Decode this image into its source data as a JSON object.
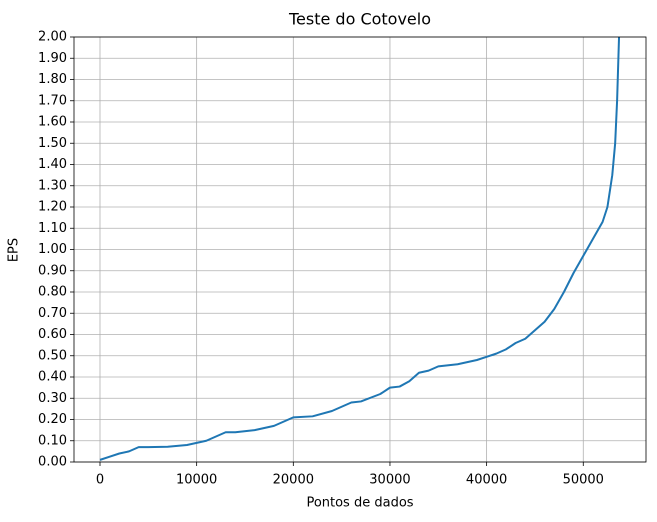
{
  "chart_data": {
    "type": "line",
    "title": "Teste do Cotovelo",
    "x_label": "Pontos de dados",
    "y_label": "EPS",
    "x": [
      0,
      1000,
      2000,
      3000,
      4000,
      5000,
      7000,
      9000,
      11000,
      12000,
      13000,
      14000,
      16000,
      18000,
      20000,
      22000,
      24000,
      26000,
      27000,
      29000,
      30000,
      31000,
      32000,
      33000,
      34000,
      35000,
      37000,
      39000,
      40000,
      41000,
      42000,
      43000,
      44000,
      45000,
      46000,
      47000,
      48000,
      49000,
      50000,
      51000,
      52000,
      52500,
      53000,
      53300,
      53500,
      53700
    ],
    "series": [
      {
        "name": "EPS",
        "color": "#1f77b4",
        "values": [
          0.01,
          0.025,
          0.04,
          0.05,
          0.07,
          0.07,
          0.072,
          0.08,
          0.1,
          0.12,
          0.14,
          0.14,
          0.15,
          0.17,
          0.21,
          0.215,
          0.24,
          0.28,
          0.285,
          0.32,
          0.35,
          0.355,
          0.38,
          0.42,
          0.43,
          0.45,
          0.46,
          0.48,
          0.495,
          0.51,
          0.53,
          0.56,
          0.58,
          0.62,
          0.66,
          0.72,
          0.8,
          0.89,
          0.97,
          1.05,
          1.13,
          1.2,
          1.35,
          1.5,
          1.7,
          2.0
        ]
      }
    ],
    "xlim": [
      -2690,
      56490
    ],
    "xticks": [
      0,
      10000,
      20000,
      30000,
      40000,
      50000
    ],
    "ylim": [
      0,
      2
    ],
    "yticks": [
      {
        "value": 0,
        "label": "0.00"
      },
      {
        "value": 0.1,
        "label": "0.10"
      },
      {
        "value": 0.2,
        "label": "0.20"
      },
      {
        "value": 0.3,
        "label": "0.30"
      },
      {
        "value": 0.4,
        "label": "0.40"
      },
      {
        "value": 0.5,
        "label": "0.50"
      },
      {
        "value": 0.6,
        "label": "0.60"
      },
      {
        "value": 0.7,
        "label": "0.70"
      },
      {
        "value": 0.8,
        "label": "0.80"
      },
      {
        "value": 0.9,
        "label": "0.90"
      },
      {
        "value": 1,
        "label": "1.00"
      },
      {
        "value": 1.1,
        "label": "1.10"
      },
      {
        "value": 1.2,
        "label": "1.20"
      },
      {
        "value": 1.3,
        "label": "1.30"
      },
      {
        "value": 1.4,
        "label": "1.40"
      },
      {
        "value": 1.5,
        "label": "1.50"
      },
      {
        "value": 1.6,
        "label": "1.60"
      },
      {
        "value": 1.7,
        "label": "1.70"
      },
      {
        "value": 1.8,
        "label": "1.80"
      },
      {
        "value": 1.9,
        "label": "1.90"
      },
      {
        "value": 2,
        "label": "2.00"
      }
    ],
    "grid": true
  }
}
